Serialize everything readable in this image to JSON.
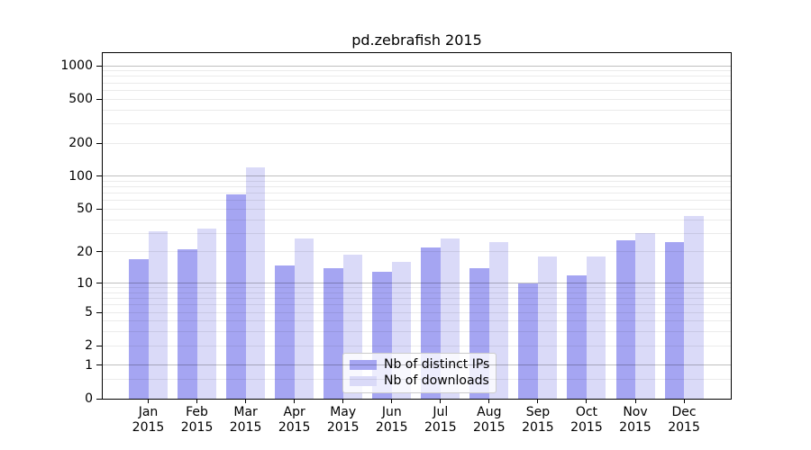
{
  "chart_data": {
    "type": "bar",
    "title": "pd.zebrafish 2015",
    "categories": [
      "Jan",
      "Feb",
      "Mar",
      "Apr",
      "May",
      "Jun",
      "Jul",
      "Aug",
      "Sep",
      "Oct",
      "Nov",
      "Dec"
    ],
    "category_year": "2015",
    "series": [
      {
        "name": "Nb of distinct IPs",
        "color": "#a5a5f2",
        "values": [
          17,
          21,
          68,
          15,
          14,
          13,
          22,
          14,
          10,
          12,
          26,
          25
        ]
      },
      {
        "name": "Nb of downloads",
        "color": "#dadaf8",
        "values": [
          31,
          33,
          120,
          27,
          19,
          16,
          27,
          25,
          18,
          18,
          30,
          43
        ]
      }
    ],
    "y_axis": {
      "scale": "log10(1+v)",
      "tick_labels": [
        0,
        1,
        2,
        5,
        10,
        20,
        50,
        100,
        200,
        500,
        1000
      ],
      "major_gridlines": [
        1,
        10,
        100,
        1000
      ],
      "minor_gridlines": [
        0.5,
        2,
        3,
        4,
        5,
        6,
        7,
        8,
        9,
        20,
        30,
        40,
        50,
        60,
        70,
        80,
        90,
        200,
        300,
        400,
        500,
        600,
        700,
        800,
        900
      ],
      "ylim": [
        0,
        1300
      ]
    },
    "x_axis": {
      "label_line2": "2015"
    },
    "legend": {
      "position": "lower-center",
      "entries": [
        "Nb of distinct IPs",
        "Nb of downloads"
      ]
    },
    "grid": "on",
    "background": "#ffffff"
  }
}
